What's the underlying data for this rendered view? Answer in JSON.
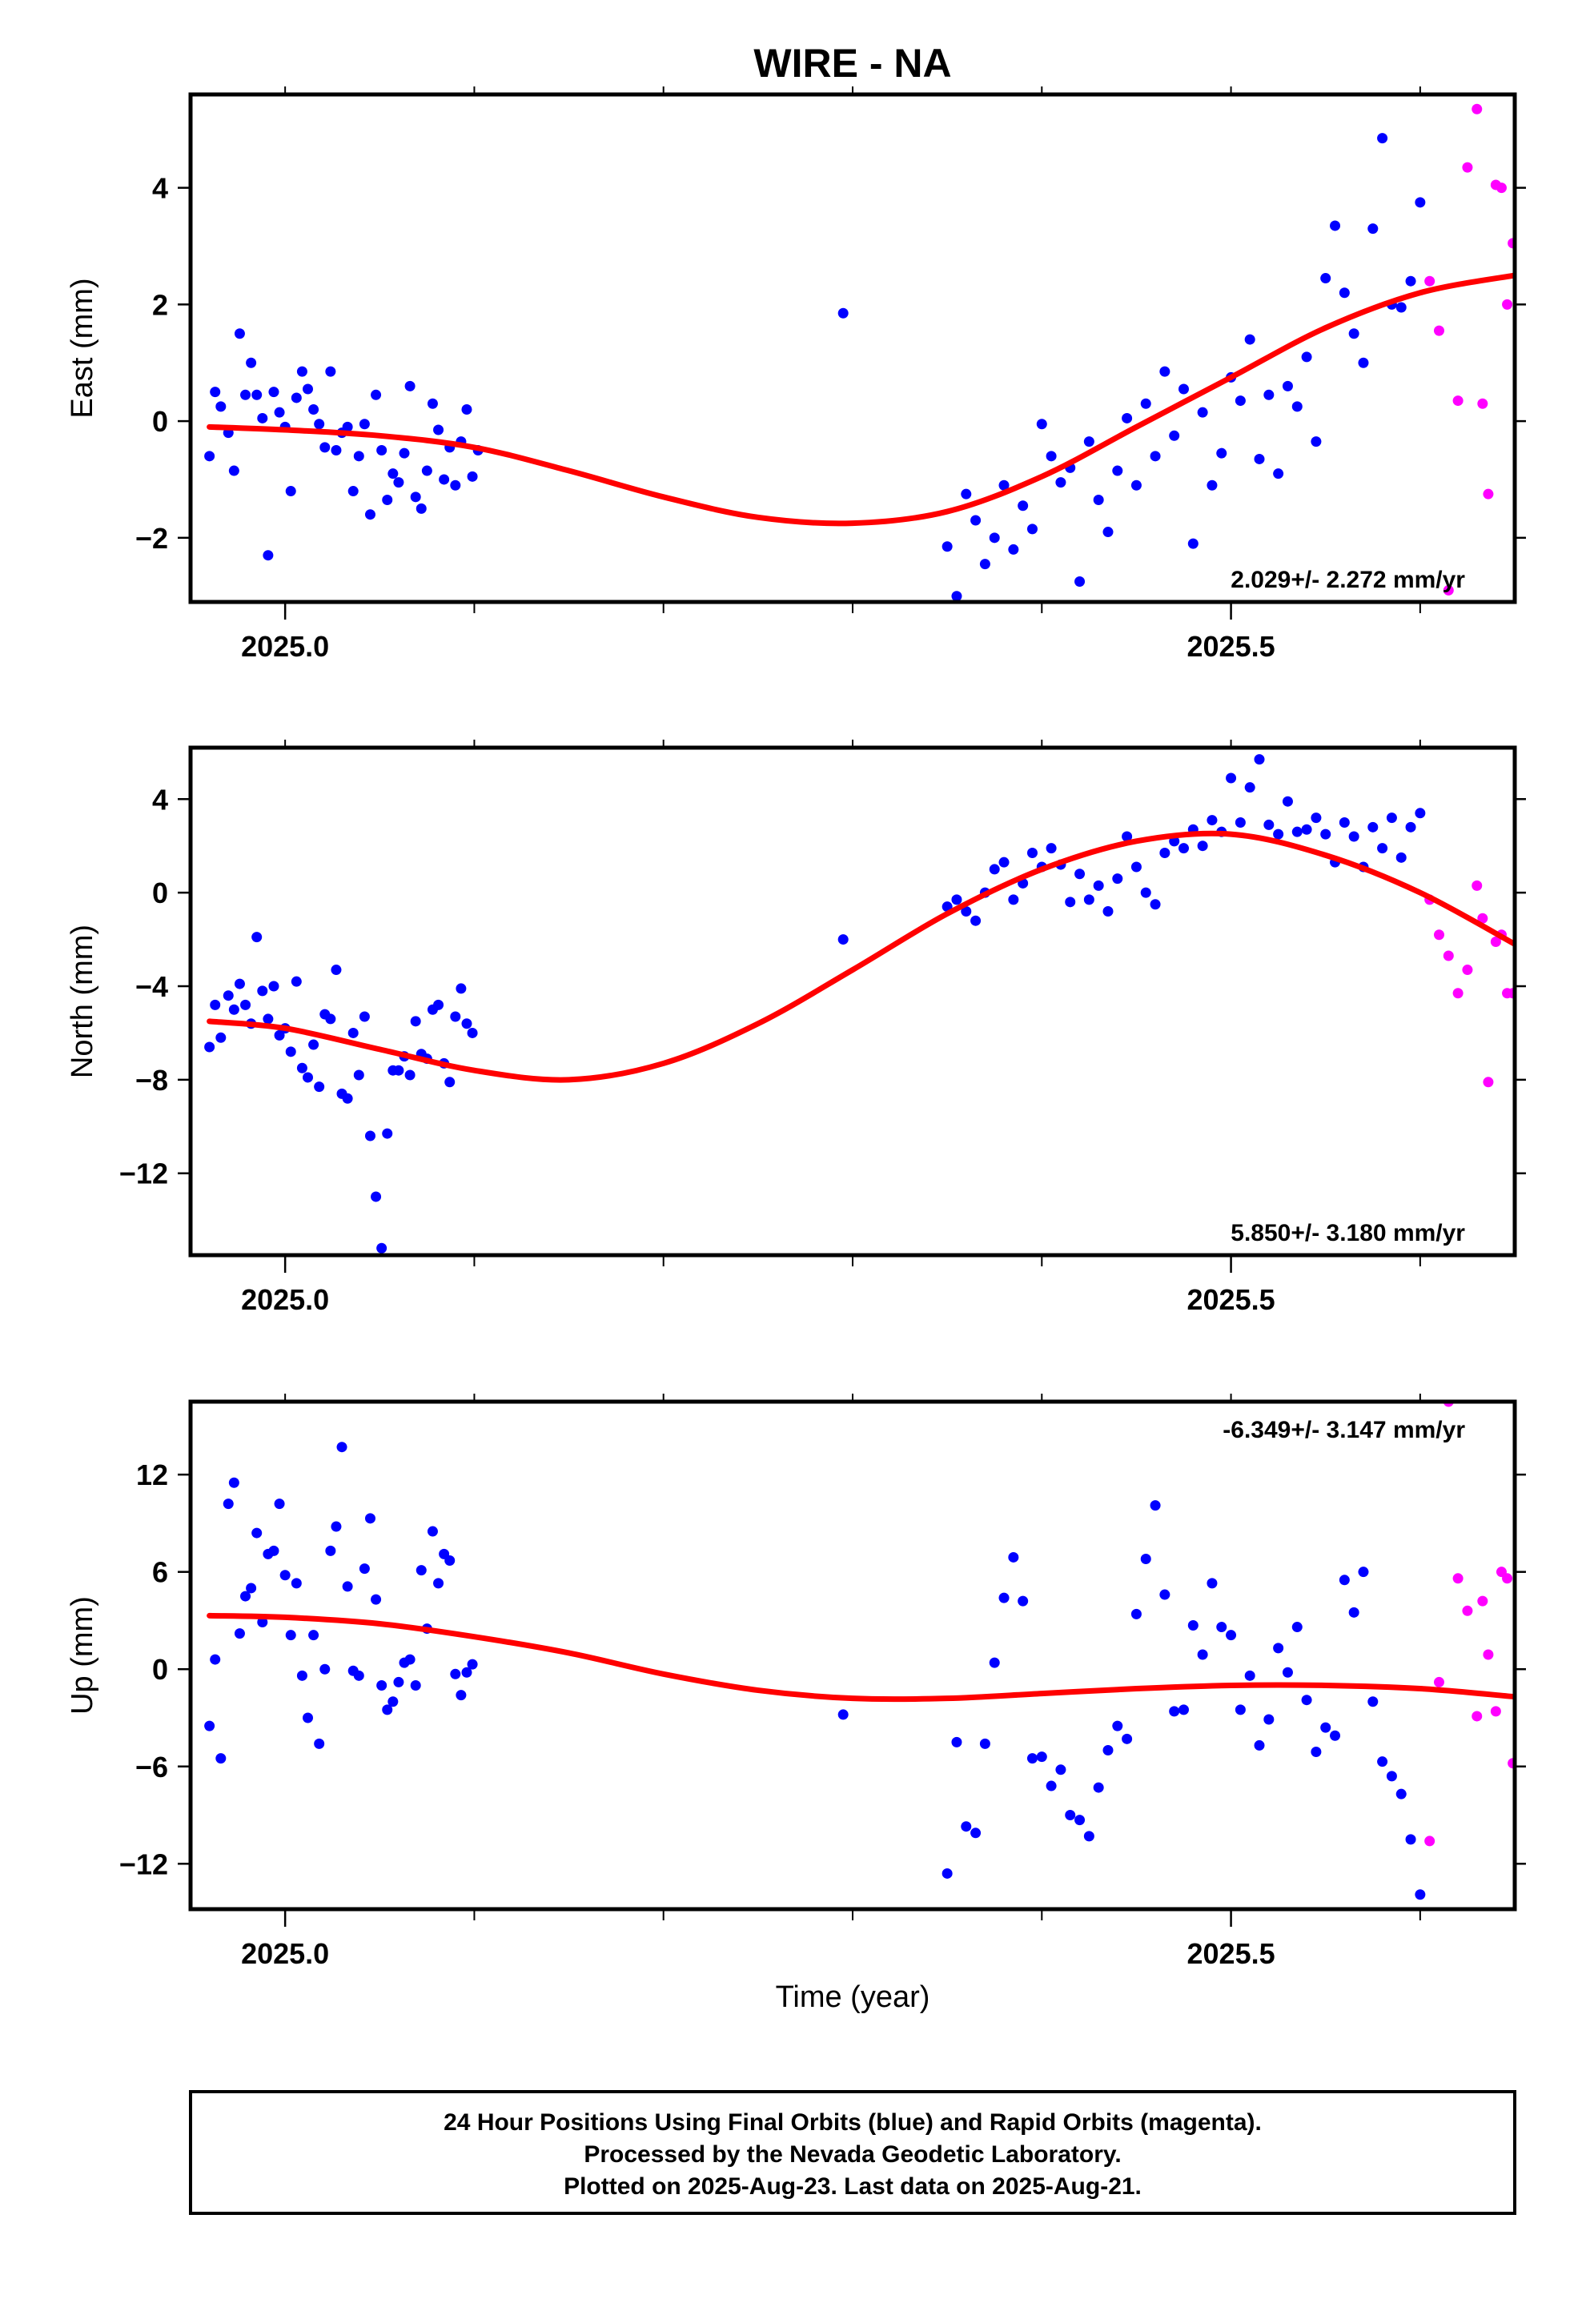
{
  "title": "WIRE - NA",
  "colors": {
    "final": "#0000ff",
    "rapid": "#ff00ff",
    "fit": "#ff0000",
    "frame": "#000000"
  },
  "footer": {
    "line1": "24 Hour Positions Using Final Orbits (blue) and Rapid Orbits (magenta).",
    "line2": "Processed by the Nevada Geodetic Laboratory.",
    "line3": "Plotted on 2025-Aug-23. Last data on 2025-Aug-21."
  },
  "chart_data": [
    {
      "type": "scatter",
      "ylabel": "East (mm)",
      "xlabel": "",
      "xlim": [
        2024.95,
        2025.65
      ],
      "ylim": [
        -3.1,
        5.6
      ],
      "xticks": [
        2025.0,
        2025.5
      ],
      "xtick_labels": [
        "2025.0",
        "2025.5"
      ],
      "yticks": [
        -2,
        0,
        2,
        4
      ],
      "ytick_labels": [
        "−2",
        "0",
        "2",
        "4"
      ],
      "rate_text": "2.029+/- 2.272 mm/yr",
      "rate_position": "bottom-right",
      "final": {
        "x": [
          2024.96,
          2024.963,
          2024.966,
          2024.97,
          2024.973,
          2024.976,
          2024.979,
          2024.982,
          2024.985,
          2024.988,
          2024.991,
          2024.994,
          2024.997,
          2025.0,
          2025.003,
          2025.006,
          2025.009,
          2025.012,
          2025.015,
          2025.018,
          2025.021,
          2025.024,
          2025.027,
          2025.03,
          2025.033,
          2025.036,
          2025.039,
          2025.042,
          2025.045,
          2025.048,
          2025.051,
          2025.054,
          2025.057,
          2025.06,
          2025.063,
          2025.066,
          2025.069,
          2025.072,
          2025.075,
          2025.078,
          2025.081,
          2025.084,
          2025.087,
          2025.09,
          2025.093,
          2025.096,
          2025.099,
          2025.102,
          2025.295,
          2025.35,
          2025.355,
          2025.36,
          2025.365,
          2025.37,
          2025.375,
          2025.38,
          2025.385,
          2025.39,
          2025.395,
          2025.4,
          2025.405,
          2025.41,
          2025.415,
          2025.42,
          2025.425,
          2025.43,
          2025.435,
          2025.44,
          2025.445,
          2025.45,
          2025.455,
          2025.46,
          2025.465,
          2025.47,
          2025.475,
          2025.48,
          2025.485,
          2025.49,
          2025.495,
          2025.5,
          2025.505,
          2025.51,
          2025.515,
          2025.52,
          2025.525,
          2025.53,
          2025.535,
          2025.54,
          2025.545,
          2025.55,
          2025.555,
          2025.56,
          2025.565,
          2025.57,
          2025.575,
          2025.58,
          2025.585,
          2025.59,
          2025.595,
          2025.6
        ],
        "y": [
          -0.6,
          0.5,
          0.25,
          -0.2,
          -0.85,
          1.5,
          0.45,
          1.0,
          0.45,
          0.05,
          -2.3,
          0.5,
          0.15,
          -0.1,
          -1.2,
          0.4,
          0.85,
          0.55,
          0.2,
          -0.05,
          -0.45,
          0.85,
          -0.5,
          -0.2,
          -0.1,
          -1.2,
          -0.6,
          -0.05,
          -1.6,
          0.45,
          -0.5,
          -1.35,
          -0.9,
          -1.05,
          -0.55,
          0.6,
          -1.3,
          -1.5,
          -0.85,
          0.3,
          -0.15,
          -1.0,
          -0.45,
          -1.1,
          -0.35,
          0.2,
          -0.95,
          -0.5,
          1.85,
          -2.15,
          -3.0,
          -1.25,
          -1.7,
          -2.45,
          -2.0,
          -1.1,
          -2.2,
          -1.45,
          -1.85,
          -0.05,
          -0.6,
          -1.05,
          -0.8,
          -2.75,
          -0.35,
          -1.35,
          -1.9,
          -0.85,
          0.05,
          -1.1,
          0.3,
          -0.6,
          0.85,
          -0.25,
          0.55,
          -2.1,
          0.15,
          -1.1,
          -0.55,
          0.75,
          0.35,
          1.4,
          -0.65,
          0.45,
          -0.9,
          0.6,
          0.25,
          1.1,
          -0.35,
          2.45,
          3.35,
          2.2,
          1.5,
          1.0,
          3.3,
          4.85,
          2.0,
          1.95,
          2.4,
          3.75
        ],
        "note": ""
      },
      "rapid": {
        "x": [
          2025.605,
          2025.61,
          2025.615,
          2025.62,
          2025.625,
          2025.63,
          2025.633,
          2025.636,
          2025.64,
          2025.643,
          2025.646,
          2025.649
        ],
        "y": [
          2.4,
          1.55,
          -2.9,
          0.35,
          4.35,
          5.35,
          0.3,
          -1.25,
          4.05,
          4.0,
          2.0,
          3.05
        ]
      },
      "fit": {
        "x": [
          2024.96,
          2025.0,
          2025.05,
          2025.1,
          2025.15,
          2025.2,
          2025.25,
          2025.3,
          2025.35,
          2025.4,
          2025.45,
          2025.5,
          2025.55,
          2025.6,
          2025.65
        ],
        "y": [
          -0.1,
          -0.15,
          -0.25,
          -0.45,
          -0.85,
          -1.3,
          -1.65,
          -1.75,
          -1.55,
          -0.95,
          -0.1,
          0.75,
          1.6,
          2.2,
          2.5
        ]
      }
    },
    {
      "type": "scatter",
      "ylabel": "North (mm)",
      "xlabel": "",
      "xlim": [
        2024.95,
        2025.65
      ],
      "ylim": [
        -15.5,
        6.2
      ],
      "xticks": [
        2025.0,
        2025.5
      ],
      "xtick_labels": [
        "2025.0",
        "2025.5"
      ],
      "yticks": [
        -12,
        -8,
        -4,
        0,
        4
      ],
      "ytick_labels": [
        "−12",
        "−8",
        "−4",
        "0",
        "4"
      ],
      "rate_text": "5.850+/- 3.180 mm/yr",
      "rate_position": "bottom-right",
      "final": {
        "x": [
          2024.96,
          2024.963,
          2024.966,
          2024.97,
          2024.973,
          2024.976,
          2024.979,
          2024.982,
          2024.985,
          2024.988,
          2024.991,
          2024.994,
          2024.997,
          2025.0,
          2025.003,
          2025.006,
          2025.009,
          2025.012,
          2025.015,
          2025.018,
          2025.021,
          2025.024,
          2025.027,
          2025.03,
          2025.033,
          2025.036,
          2025.039,
          2025.042,
          2025.045,
          2025.048,
          2025.051,
          2025.054,
          2025.057,
          2025.06,
          2025.063,
          2025.066,
          2025.069,
          2025.072,
          2025.075,
          2025.078,
          2025.081,
          2025.084,
          2025.087,
          2025.09,
          2025.093,
          2025.096,
          2025.099,
          2025.295,
          2025.35,
          2025.355,
          2025.36,
          2025.365,
          2025.37,
          2025.375,
          2025.38,
          2025.385,
          2025.39,
          2025.395,
          2025.4,
          2025.405,
          2025.41,
          2025.415,
          2025.42,
          2025.425,
          2025.43,
          2025.435,
          2025.44,
          2025.445,
          2025.45,
          2025.455,
          2025.46,
          2025.465,
          2025.47,
          2025.475,
          2025.48,
          2025.485,
          2025.49,
          2025.495,
          2025.5,
          2025.505,
          2025.51,
          2025.515,
          2025.52,
          2025.525,
          2025.53,
          2025.535,
          2025.54,
          2025.545,
          2025.55,
          2025.555,
          2025.56,
          2025.565,
          2025.57,
          2025.575,
          2025.58,
          2025.585,
          2025.59,
          2025.595,
          2025.6
        ],
        "y": [
          -6.6,
          -4.8,
          -6.2,
          -4.4,
          -5.0,
          -3.9,
          -4.8,
          -5.6,
          -1.9,
          -4.2,
          -5.4,
          -4.0,
          -6.1,
          -5.8,
          -6.8,
          -3.8,
          -7.5,
          -7.9,
          -6.5,
          -8.3,
          -5.2,
          -5.4,
          -3.3,
          -8.6,
          -8.8,
          -6.0,
          -7.8,
          -5.3,
          -10.4,
          -13.0,
          -15.2,
          -10.3,
          -7.6,
          -7.6,
          -7.0,
          -7.8,
          -5.5,
          -6.9,
          -7.1,
          -5.0,
          -4.8,
          -7.3,
          -8.1,
          -5.3,
          -4.1,
          -5.6,
          -6.0,
          -2.0,
          -0.6,
          -0.3,
          -0.8,
          -1.2,
          0.0,
          1.0,
          1.3,
          -0.3,
          0.4,
          1.7,
          1.1,
          1.9,
          1.2,
          -0.4,
          0.8,
          -0.3,
          0.3,
          -0.8,
          0.6,
          2.4,
          1.1,
          0.0,
          -0.5,
          1.7,
          2.2,
          1.9,
          2.7,
          2.0,
          3.1,
          2.6,
          4.9,
          3.0,
          4.5,
          5.7,
          2.9,
          2.5,
          3.9,
          2.6,
          2.7,
          3.2,
          2.5,
          1.3,
          3.0,
          2.4,
          1.1,
          2.8,
          1.9,
          3.2,
          1.5,
          2.8,
          3.4
        ],
        "note": ""
      },
      "rapid": {
        "x": [
          2025.605,
          2025.61,
          2025.615,
          2025.62,
          2025.625,
          2025.63,
          2025.633,
          2025.636,
          2025.64,
          2025.643,
          2025.646,
          2025.649
        ],
        "y": [
          -0.3,
          -1.8,
          -2.7,
          -4.3,
          -3.3,
          0.3,
          -1.1,
          -8.1,
          -2.1,
          -1.8,
          -4.3,
          -4.3
        ]
      },
      "fit": {
        "x": [
          2024.96,
          2025.0,
          2025.05,
          2025.1,
          2025.15,
          2025.2,
          2025.25,
          2025.3,
          2025.35,
          2025.4,
          2025.45,
          2025.5,
          2025.55,
          2025.6,
          2025.65
        ],
        "y": [
          -5.5,
          -5.8,
          -6.7,
          -7.6,
          -8.0,
          -7.3,
          -5.6,
          -3.3,
          -0.9,
          1.0,
          2.2,
          2.5,
          1.6,
          0.0,
          -2.2
        ]
      }
    },
    {
      "type": "scatter",
      "ylabel": "Up (mm)",
      "xlabel": "Time (year)",
      "xlim": [
        2024.95,
        2025.65
      ],
      "ylim": [
        -14.8,
        16.5
      ],
      "xticks": [
        2025.0,
        2025.5
      ],
      "xtick_labels": [
        "2025.0",
        "2025.5"
      ],
      "yticks": [
        -12,
        -6,
        0,
        6,
        12
      ],
      "ytick_labels": [
        "−12",
        "−6",
        "0",
        "6",
        "12"
      ],
      "rate_text": "-6.349+/- 3.147 mm/yr",
      "rate_position": "top-right",
      "final": {
        "x": [
          2024.96,
          2024.963,
          2024.966,
          2024.97,
          2024.973,
          2024.976,
          2024.979,
          2024.982,
          2024.985,
          2024.988,
          2024.991,
          2024.994,
          2024.997,
          2025.0,
          2025.003,
          2025.006,
          2025.009,
          2025.012,
          2025.015,
          2025.018,
          2025.021,
          2025.024,
          2025.027,
          2025.03,
          2025.033,
          2025.036,
          2025.039,
          2025.042,
          2025.045,
          2025.048,
          2025.051,
          2025.054,
          2025.057,
          2025.06,
          2025.063,
          2025.066,
          2025.069,
          2025.072,
          2025.075,
          2025.078,
          2025.081,
          2025.084,
          2025.087,
          2025.09,
          2025.093,
          2025.096,
          2025.099,
          2025.295,
          2025.35,
          2025.355,
          2025.36,
          2025.365,
          2025.37,
          2025.375,
          2025.38,
          2025.385,
          2025.39,
          2025.395,
          2025.4,
          2025.405,
          2025.41,
          2025.415,
          2025.42,
          2025.425,
          2025.43,
          2025.435,
          2025.44,
          2025.445,
          2025.45,
          2025.455,
          2025.46,
          2025.465,
          2025.47,
          2025.475,
          2025.48,
          2025.485,
          2025.49,
          2025.495,
          2025.5,
          2025.505,
          2025.51,
          2025.515,
          2025.52,
          2025.525,
          2025.53,
          2025.535,
          2025.54,
          2025.545,
          2025.55,
          2025.555,
          2025.56,
          2025.565,
          2025.57,
          2025.575,
          2025.58,
          2025.585,
          2025.59,
          2025.595,
          2025.6
        ],
        "y": [
          -3.5,
          0.6,
          -5.5,
          10.2,
          11.5,
          2.2,
          4.5,
          5.0,
          8.4,
          2.9,
          7.1,
          7.3,
          10.2,
          5.8,
          2.1,
          5.3,
          -0.4,
          -3.0,
          2.1,
          -4.6,
          0.0,
          7.3,
          8.8,
          13.7,
          5.1,
          -0.1,
          -0.4,
          6.2,
          9.3,
          4.3,
          -1.0,
          -2.5,
          -2.0,
          -0.8,
          0.4,
          0.6,
          -1.0,
          6.1,
          2.5,
          8.5,
          5.3,
          7.1,
          6.7,
          -0.3,
          -1.6,
          -0.2,
          0.3,
          -2.8,
          -12.6,
          -4.5,
          -9.7,
          -10.1,
          -4.6,
          0.4,
          4.4,
          6.9,
          4.2,
          -5.5,
          -5.4,
          -7.2,
          -6.2,
          -9.0,
          -9.3,
          -10.3,
          -7.3,
          -5.0,
          -3.5,
          -4.3,
          3.4,
          6.8,
          10.1,
          4.6,
          -2.6,
          -2.5,
          2.7,
          0.9,
          5.3,
          2.6,
          2.1,
          -2.5,
          -0.4,
          -4.7,
          -3.1,
          1.3,
          -0.2,
          2.6,
          -1.9,
          -5.1,
          -3.6,
          -4.1,
          5.5,
          3.5,
          6.0,
          -2.0,
          -5.7,
          -6.6,
          -7.7,
          -10.5,
          -13.9
        ],
        "note": ""
      },
      "rapid": {
        "x": [
          2025.605,
          2025.61,
          2025.615,
          2025.62,
          2025.625,
          2025.63,
          2025.633,
          2025.636,
          2025.64,
          2025.643,
          2025.646,
          2025.649
        ],
        "y": [
          -10.6,
          -0.8,
          16.5,
          5.6,
          3.6,
          -2.9,
          4.2,
          0.9,
          -2.6,
          6.0,
          5.6,
          -5.8
        ]
      },
      "fit": {
        "x": [
          2024.96,
          2025.0,
          2025.05,
          2025.1,
          2025.15,
          2025.2,
          2025.25,
          2025.3,
          2025.35,
          2025.4,
          2025.45,
          2025.5,
          2025.55,
          2025.6,
          2025.65
        ],
        "y": [
          3.3,
          3.2,
          2.8,
          2.0,
          1.0,
          -0.3,
          -1.3,
          -1.8,
          -1.8,
          -1.5,
          -1.2,
          -1.0,
          -1.0,
          -1.2,
          -1.7
        ]
      }
    }
  ]
}
